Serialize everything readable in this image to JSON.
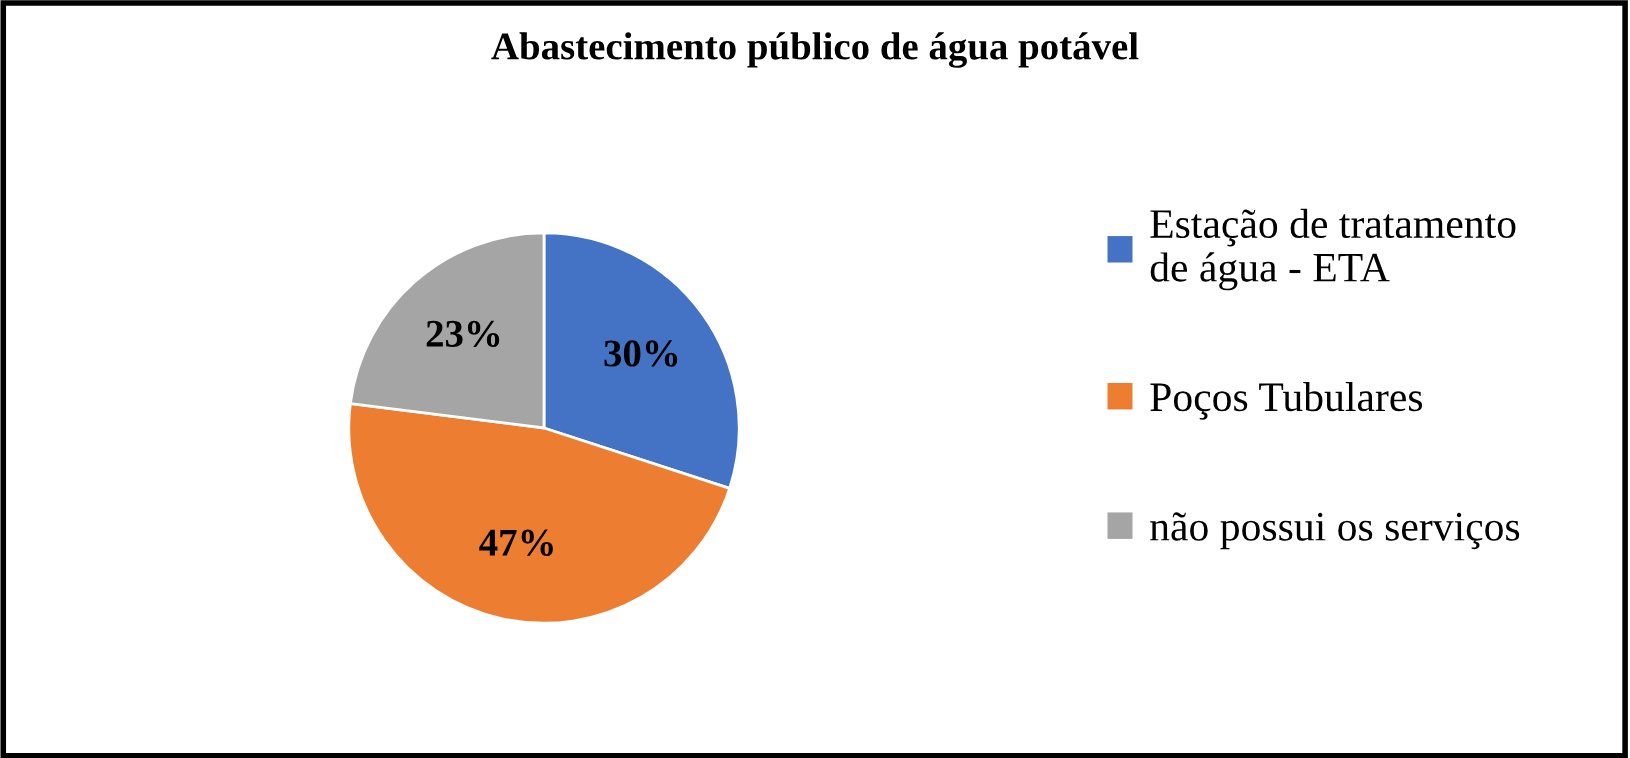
{
  "chart_data": {
    "type": "pie",
    "title": "Abastecimento público de água potável",
    "categories": [
      "Estação de tratamento\nde água - ETA",
      "Poços Tubulares",
      "não possui os serviços"
    ],
    "values": [
      30,
      47,
      23
    ],
    "colors": [
      "#4472c4",
      "#ed7d31",
      "#a5a5a5"
    ],
    "value_labels": [
      "30%",
      "47%",
      "23%"
    ],
    "legend": "right"
  }
}
